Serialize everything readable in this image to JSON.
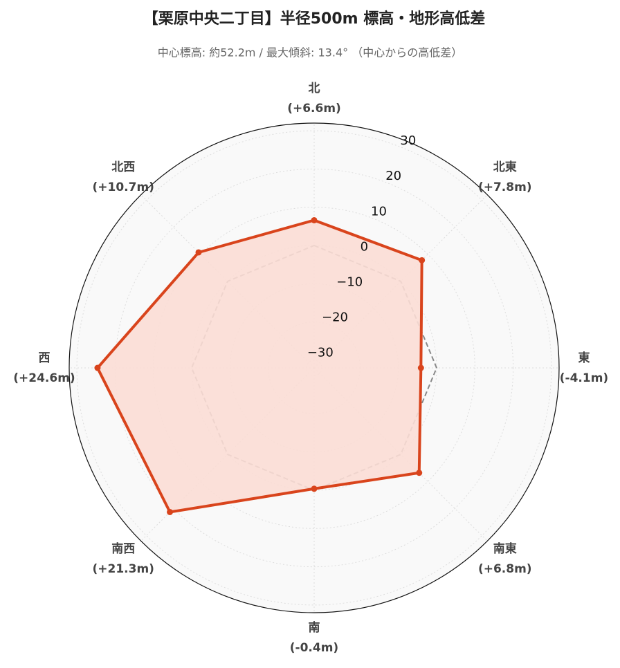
{
  "chart_data": {
    "type": "radar",
    "title": "【栗原中央二丁目】半径500m 標高・地形高低差",
    "subtitle": "中心標高: 約52.2m / 最大傾斜: 13.4° （中心からの高低差）",
    "categories": [
      "北",
      "北東",
      "東",
      "南東",
      "南",
      "南西",
      "西",
      "北西"
    ],
    "series": [
      {
        "color": "#d9441c",
        "fill": "#fbddd5",
        "values": [
          6.6,
          7.8,
          -4.1,
          6.8,
          -0.4,
          21.3,
          24.6,
          10.7
        ],
        "value_labels": [
          "(+6.6m)",
          "(+7.8m)",
          "(-4.1m)",
          "(+6.8m)",
          "(-0.4m)",
          "(+21.3m)",
          "(+24.6m)",
          "(+10.7m)"
        ]
      }
    ],
    "ylim": [
      -32,
      32
    ],
    "yticks": [
      {
        "value": -30,
        "label": "−30"
      },
      {
        "value": -20,
        "label": "−20"
      },
      {
        "value": -10,
        "label": "−10"
      },
      0,
      10,
      20,
      30
    ],
    "reference_line": 0,
    "grid": true
  }
}
